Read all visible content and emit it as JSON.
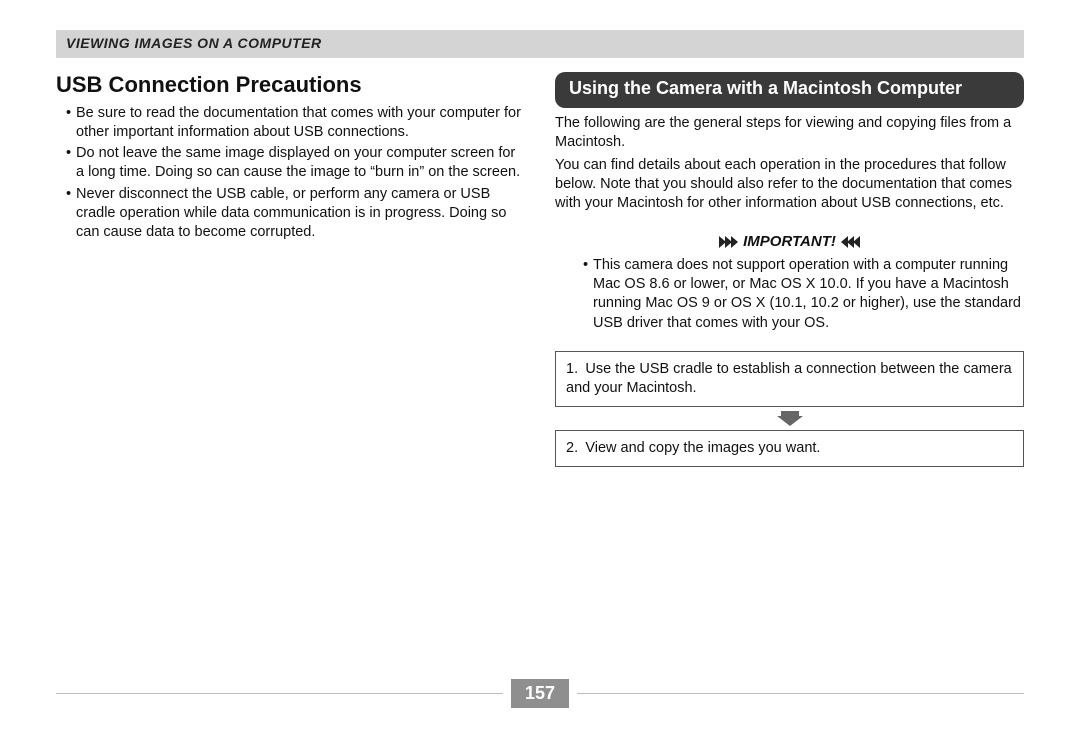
{
  "header": {
    "title": "VIEWING IMAGES ON A COMPUTER"
  },
  "left": {
    "heading": "USB Connection Precautions",
    "bullets": [
      "Be sure to read the documentation that comes with your computer for other important information about USB connections.",
      "Do not leave the same image displayed on your computer screen for a long time. Doing so can cause the image to “burn in” on the screen.",
      "Never disconnect the USB cable, or perform any camera or USB cradle operation while data communication is in progress. Doing so can cause data to become corrupted."
    ]
  },
  "right": {
    "banner": "Using the Camera with a Macintosh Computer",
    "intro1": "The following are the general steps for viewing and copying files from a Macintosh.",
    "intro2": "You can find details about each operation in the procedures that follow below. Note that you should also refer to the documentation that comes with your Macintosh for other information about USB connections, etc.",
    "important_label": "IMPORTANT!",
    "important_bullet": "This camera does not support operation with a computer running Mac OS 8.6 or lower, or Mac OS X 10.0. If you have a Macintosh running Mac OS 9 or OS X (10.1, 10.2 or higher), use the standard USB driver that comes with your OS.",
    "step1": "1. Use the USB cradle to establish a connection between the camera and your Macintosh.",
    "step2": "2. View and copy the images you want."
  },
  "page_number": "157",
  "colors": {
    "header_bg": "#d4d4d4",
    "banner_bg": "#3a3a3a",
    "banner_text": "#ffffff",
    "page_bg": "#8f8f8f",
    "rule": "#bdbdbd",
    "arrow": "#666666"
  }
}
